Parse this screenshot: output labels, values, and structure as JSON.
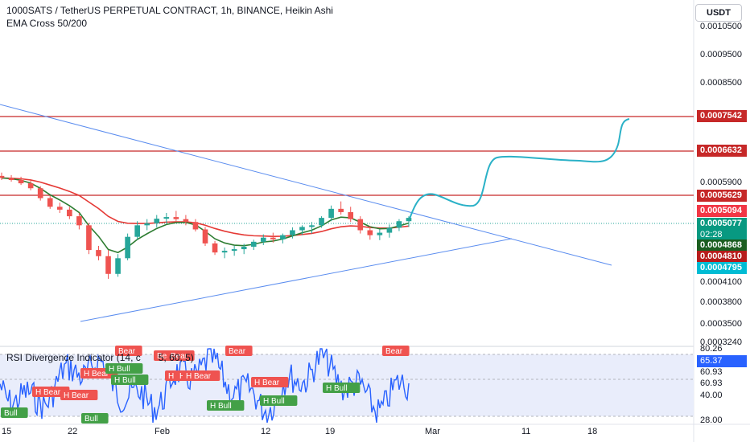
{
  "header": {
    "title": "1000SATS / TetherUS PERPETUAL CONTRACT, 1h, BINANCE, Heikin Ashi",
    "indicator": "EMA Cross 50/200",
    "currency": "USDT"
  },
  "rsi_pane": {
    "title": "RSI Divergence Indicator (14, c",
    "title_tail": "5, 60, 5)"
  },
  "price_axis": {
    "ticks": [
      "0.0010500",
      "0.0009500",
      "0.0008500",
      "0.0005900",
      "0.0004100",
      "0.0003800",
      "0.0003500",
      "0.0003240"
    ]
  },
  "price_tags": {
    "t1": "0.0007542",
    "t2": "0.0006632",
    "t3": "0.0005629",
    "t4": "0.0005094",
    "t5": "0.0005077",
    "t5_timer": "02:28",
    "t6": "0.0004868",
    "t7": "0.0004810",
    "t8": "0.0004795"
  },
  "rsi_axis": {
    "ticks": [
      "80.26",
      "65.37",
      "60.93",
      "60.93",
      "40.00",
      "28.00"
    ]
  },
  "time_axis": {
    "ticks": [
      "15",
      "22",
      "Feb",
      "12",
      "19",
      "Mar",
      "11",
      "18"
    ]
  },
  "signals": [
    {
      "text": "Bear",
      "kind": "bear"
    },
    {
      "text": "Bear",
      "kind": "bear"
    },
    {
      "text": "H Bear",
      "kind": "bear"
    },
    {
      "text": "H Bull",
      "kind": "bull"
    },
    {
      "text": "H Bull",
      "kind": "bull"
    },
    {
      "text": "H Bear",
      "kind": "bear"
    },
    {
      "text": "H Bear",
      "kind": "bear"
    },
    {
      "text": "H Bear",
      "kind": "bear"
    },
    {
      "text": "H Bear",
      "kind": "bear"
    },
    {
      "text": "H Bear",
      "kind": "bear"
    },
    {
      "text": "H Bull",
      "kind": "bull"
    },
    {
      "text": "H Bear",
      "kind": "bear"
    },
    {
      "text": "Bear",
      "kind": "bear"
    },
    {
      "text": "H Bull",
      "kind": "bull"
    },
    {
      "text": "H Bull",
      "kind": "bull"
    },
    {
      "text": "Bull",
      "kind": "bull"
    },
    {
      "text": "Bull",
      "kind": "bull"
    },
    {
      "text": "Bear",
      "kind": "bear"
    },
    {
      "text": "Bear",
      "kind": "bear"
    }
  ],
  "colors": {
    "bull": "#26a69a",
    "bear": "#ef5350",
    "ema50": "#2e7d32",
    "ema200": "#e53935",
    "hline": "#d32f2f",
    "trend": "#5b8def",
    "projection": "#2ab1c7",
    "rsi": "#2962ff",
    "band": "#d7dcf5"
  },
  "chart_data": {
    "type": "candlestick",
    "symbol": "1000SATS / TetherUS PERPETUAL CONTRACT",
    "interval": "1h",
    "exchange": "BINANCE",
    "horizontal_levels": [
      0.0007542,
      0.0006632,
      0.0005629
    ],
    "last_price": 0.0005077,
    "ema50_last": 0.0004868,
    "ema200_last": 0.000481,
    "ohlc": [
      [
        0.00061,
        0.000618,
        0.0006,
        0.000605
      ],
      [
        0.000605,
        0.000612,
        0.000596,
        0.0006
      ],
      [
        0.0006,
        0.000608,
        0.000588,
        0.000592
      ],
      [
        0.000592,
        0.0006,
        0.000575,
        0.00058
      ],
      [
        0.00058,
        0.000585,
        0.00055,
        0.000556
      ],
      [
        0.000556,
        0.000562,
        0.00053,
        0.000535
      ],
      [
        0.000535,
        0.000545,
        0.00052,
        0.000528
      ],
      [
        0.000528,
        0.000535,
        0.000505,
        0.000512
      ],
      [
        0.000512,
        0.00052,
        0.00048,
        0.00049
      ],
      [
        0.00049,
        0.000496,
        0.00042,
        0.00043
      ],
      [
        0.00043,
        0.00044,
        0.000405,
        0.000415
      ],
      [
        0.000415,
        0.00043,
        0.00036,
        0.000372
      ],
      [
        0.000372,
        0.00042,
        0.000365,
        0.00041
      ],
      [
        0.00041,
        0.00047,
        0.000405,
        0.000462
      ],
      [
        0.000462,
        0.0005,
        0.000455,
        0.00049
      ],
      [
        0.00049,
        0.000505,
        0.000478,
        0.000495
      ],
      [
        0.000495,
        0.000515,
        0.000485,
        0.000506
      ],
      [
        0.000506,
        0.00052,
        0.000495,
        0.00051
      ],
      [
        0.00051,
        0.000525,
        0.000498,
        0.000505
      ],
      [
        0.000505,
        0.000515,
        0.00049,
        0.000498
      ],
      [
        0.000498,
        0.000505,
        0.000475,
        0.00048
      ],
      [
        0.00048,
        0.000486,
        0.00044,
        0.000446
      ],
      [
        0.000446,
        0.000452,
        0.000418,
        0.000424
      ],
      [
        0.000424,
        0.000436,
        0.00041,
        0.000428
      ],
      [
        0.000428,
        0.00044,
        0.000416,
        0.000432
      ],
      [
        0.000432,
        0.000445,
        0.00042,
        0.000438
      ],
      [
        0.000438,
        0.000455,
        0.00043,
        0.00045
      ],
      [
        0.00045,
        0.000468,
        0.000442,
        0.00046
      ],
      [
        0.00046,
        0.000472,
        0.000448,
        0.000456
      ],
      [
        0.000456,
        0.00047,
        0.000446,
        0.000466
      ],
      [
        0.000466,
        0.000485,
        0.000458,
        0.000478
      ],
      [
        0.000478,
        0.00049,
        0.000466,
        0.000486
      ],
      [
        0.000486,
        0.000498,
        0.00047,
        0.00049
      ],
      [
        0.00049,
        0.000512,
        0.000484,
        0.000508
      ],
      [
        0.000508,
        0.000538,
        0.0005,
        0.00053
      ],
      [
        0.00053,
        0.000548,
        0.000516,
        0.000522
      ],
      [
        0.000522,
        0.000535,
        0.000498,
        0.000505
      ],
      [
        0.000505,
        0.000512,
        0.00047,
        0.000478
      ],
      [
        0.000478,
        0.000488,
        0.000455,
        0.000466
      ],
      [
        0.000466,
        0.00048,
        0.000454,
        0.000472
      ],
      [
        0.000472,
        0.000492,
        0.00046,
        0.000484
      ],
      [
        0.000484,
        0.000505,
        0.000476,
        0.0005
      ],
      [
        0.0005,
        0.000512,
        0.000486,
        0.000508
      ]
    ],
    "trendlines": [
      {
        "from": [
          0,
          0.0008
        ],
        "to": [
          55,
          0.000445
        ]
      },
      {
        "from": [
          8,
          0.000363
        ],
        "to": [
          45,
          0.000499
        ]
      }
    ],
    "rsi_levels": [
      80.26,
      65.37,
      60.93,
      40.0,
      28.0
    ]
  }
}
